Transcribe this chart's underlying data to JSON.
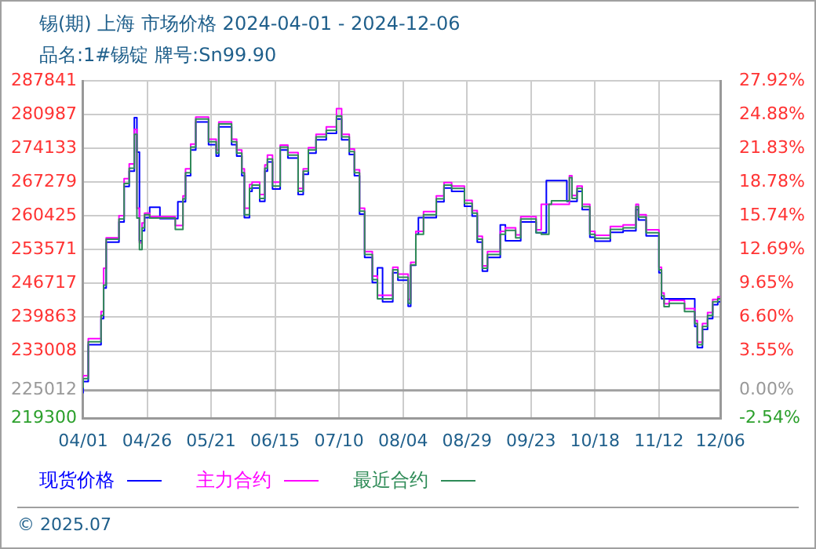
{
  "chart_data": {
    "type": "step",
    "title": "锡(期) 上海 市场价格 2024-04-01 - 2024-12-06",
    "subtitle": "品名:1#锡锭 牌号:Sn99.90",
    "annotations": [
      "© 2025.07"
    ],
    "xlim": [
      "2024-04-01",
      "2024-12-06"
    ],
    "xticks": [
      {
        "value": "2024-04-01",
        "label": "04/01"
      },
      {
        "value": "2024-04-26",
        "label": "04/26"
      },
      {
        "value": "2024-05-21",
        "label": "05/21"
      },
      {
        "value": "2024-06-15",
        "label": "06/15"
      },
      {
        "value": "2024-07-10",
        "label": "07/10"
      },
      {
        "value": "2024-08-04",
        "label": "08/04"
      },
      {
        "value": "2024-08-29",
        "label": "08/29"
      },
      {
        "value": "2024-09-23",
        "label": "09/23"
      },
      {
        "value": "2024-10-18",
        "label": "10/18"
      },
      {
        "value": "2024-11-12",
        "label": "11/12"
      },
      {
        "value": "2024-12-06",
        "label": "12/06"
      }
    ],
    "ylim": [
      219300,
      287841
    ],
    "yticks": [
      219300,
      225012,
      233008,
      239863,
      246717,
      253571,
      260425,
      267279,
      274133,
      280987,
      287841
    ],
    "y2lim": [
      -2.54,
      27.92
    ],
    "y2ticks": [
      {
        "value": -2.54,
        "label": "-2.54%"
      },
      {
        "value": 0,
        "label": "0.00%"
      },
      {
        "value": 3.55,
        "label": "3.55%"
      },
      {
        "value": 6.6,
        "label": "6.60%"
      },
      {
        "value": 9.65,
        "label": "9.65%"
      },
      {
        "value": 12.69,
        "label": "12.69%"
      },
      {
        "value": 15.74,
        "label": "15.74%"
      },
      {
        "value": 18.78,
        "label": "18.78%"
      },
      {
        "value": 21.83,
        "label": "21.83%"
      },
      {
        "value": 24.88,
        "label": "24.88%"
      },
      {
        "value": 27.92,
        "label": "27.92%"
      }
    ],
    "ref_lines": [
      {
        "axis": "y",
        "value": 225012,
        "color": "#a0a0a0",
        "line_style": "solid"
      }
    ],
    "grid": true,
    "legend": "bottom",
    "marker": "none",
    "line_style": "solid",
    "series": [
      {
        "name": "现货价格",
        "color": "#0000ff",
        "x": [
          "2024-04-01",
          "2024-04-03",
          "2024-04-08",
          "2024-04-09",
          "2024-04-10",
          "2024-04-15",
          "2024-04-17",
          "2024-04-19",
          "2024-04-21",
          "2024-04-22",
          "2024-04-23",
          "2024-04-24",
          "2024-04-25",
          "2024-04-27",
          "2024-05-01",
          "2024-05-08",
          "2024-05-11",
          "2024-05-13",
          "2024-05-15",
          "2024-05-20",
          "2024-05-23",
          "2024-05-24",
          "2024-05-29",
          "2024-05-31",
          "2024-06-02",
          "2024-06-03",
          "2024-06-05",
          "2024-06-06",
          "2024-06-09",
          "2024-06-11",
          "2024-06-12",
          "2024-06-14",
          "2024-06-17",
          "2024-06-20",
          "2024-06-24",
          "2024-06-26",
          "2024-06-28",
          "2024-07-01",
          "2024-07-05",
          "2024-07-09",
          "2024-07-11",
          "2024-07-14",
          "2024-07-16",
          "2024-07-18",
          "2024-07-20",
          "2024-07-23",
          "2024-07-25",
          "2024-07-27",
          "2024-07-31",
          "2024-08-02",
          "2024-08-06",
          "2024-08-07",
          "2024-08-09",
          "2024-08-10",
          "2024-08-17",
          "2024-08-20",
          "2024-08-23",
          "2024-08-28",
          "2024-08-31",
          "2024-09-02",
          "2024-09-04",
          "2024-09-06",
          "2024-09-11",
          "2024-09-13",
          "2024-09-19",
          "2024-09-21",
          "2024-09-25",
          "2024-09-29",
          "2024-10-07",
          "2024-10-11",
          "2024-10-13",
          "2024-10-16",
          "2024-10-18",
          "2024-10-24",
          "2024-10-29",
          "2024-11-03",
          "2024-11-04",
          "2024-11-07",
          "2024-11-12",
          "2024-11-13",
          "2024-11-14",
          "2024-11-26",
          "2024-11-27",
          "2024-11-29",
          "2024-12-01",
          "2024-12-03",
          "2024-12-05",
          "2024-12-06"
        ],
        "values": [
          224400,
          226800,
          234300,
          239600,
          245800,
          255100,
          259200,
          266400,
          269500,
          280400,
          273400,
          255400,
          257400,
          260100,
          262200,
          259900,
          263300,
          268600,
          273800,
          279500,
          274900,
          272600,
          278500,
          274900,
          272600,
          268600,
          260100,
          265400,
          266100,
          263400,
          269500,
          271400,
          265900,
          273800,
          272200,
          264800,
          268900,
          273200,
          275900,
          277200,
          280100,
          275900,
          272900,
          268600,
          260800,
          252000,
          246900,
          249900,
          243000,
          248900,
          247400,
          242100,
          250400,
          256700,
          260100,
          263300,
          266100,
          265400,
          262400,
          260400,
          255100,
          249200,
          252000,
          258600,
          255400,
          259200,
          259200,
          257000,
          267600,
          263400,
          265400,
          261700,
          256100,
          255300,
          257100,
          257400,
          261700,
          259600,
          256400,
          248900,
          243600,
          243600,
          238000,
          233700,
          237400,
          239600,
          242400,
          243000
        ]
      },
      {
        "name": "主力合约",
        "color": "#ff00ff",
        "x": [
          "2024-04-01",
          "2024-04-03",
          "2024-04-08",
          "2024-04-09",
          "2024-04-10",
          "2024-04-15",
          "2024-04-17",
          "2024-04-19",
          "2024-04-21",
          "2024-04-22",
          "2024-04-23",
          "2024-04-24",
          "2024-04-25",
          "2024-04-27",
          "2024-05-07",
          "2024-05-10",
          "2024-05-11",
          "2024-05-13",
          "2024-05-15",
          "2024-05-20",
          "2024-05-23",
          "2024-05-24",
          "2024-05-29",
          "2024-05-31",
          "2024-06-02",
          "2024-06-03",
          "2024-06-05",
          "2024-06-06",
          "2024-06-09",
          "2024-06-11",
          "2024-06-12",
          "2024-06-14",
          "2024-06-17",
          "2024-06-20",
          "2024-06-24",
          "2024-06-26",
          "2024-06-28",
          "2024-07-01",
          "2024-07-05",
          "2024-07-09",
          "2024-07-11",
          "2024-07-14",
          "2024-07-16",
          "2024-07-18",
          "2024-07-20",
          "2024-07-23",
          "2024-07-25",
          "2024-07-31",
          "2024-08-02",
          "2024-08-06",
          "2024-08-07",
          "2024-08-09",
          "2024-08-12",
          "2024-08-17",
          "2024-08-20",
          "2024-08-23",
          "2024-08-28",
          "2024-08-31",
          "2024-09-02",
          "2024-09-04",
          "2024-09-06",
          "2024-09-11",
          "2024-09-13",
          "2024-09-17",
          "2024-09-19",
          "2024-09-21",
          "2024-09-25",
          "2024-09-27",
          "2024-09-30",
          "2024-10-08",
          "2024-10-09",
          "2024-10-11",
          "2024-10-13",
          "2024-10-16",
          "2024-10-18",
          "2024-10-24",
          "2024-10-29",
          "2024-11-03",
          "2024-11-04",
          "2024-11-07",
          "2024-11-12",
          "2024-11-13",
          "2024-11-14",
          "2024-11-16",
          "2024-11-22",
          "2024-11-26",
          "2024-11-27",
          "2024-11-29",
          "2024-12-01",
          "2024-12-03",
          "2024-12-05",
          "2024-12-06"
        ],
        "values": [
          226900,
          228000,
          235500,
          241000,
          249800,
          256000,
          260500,
          268000,
          271000,
          278000,
          262000,
          255000,
          259000,
          261000,
          260300,
          258500,
          264500,
          270000,
          275000,
          280500,
          276000,
          273800,
          279500,
          276000,
          273800,
          270000,
          262000,
          266800,
          267300,
          264800,
          270800,
          272800,
          267300,
          274800,
          273300,
          266000,
          270000,
          274300,
          277000,
          278500,
          282200,
          277000,
          274000,
          269800,
          262000,
          253200,
          248200,
          244300,
          250000,
          248600,
          243500,
          251000,
          257300,
          261300,
          264500,
          267200,
          266500,
          263600,
          261500,
          256300,
          250300,
          253200,
          257300,
          258000,
          256600,
          260300,
          260300,
          257600,
          262800,
          262800,
          268600,
          264600,
          266500,
          262800,
          257300,
          256500,
          258300,
          258600,
          262800,
          260700,
          257600,
          250000,
          244800,
          242600,
          243300,
          241600,
          239200,
          234800,
          238600,
          240800,
          243500,
          244000
        ]
      },
      {
        "name": "最近合约",
        "color": "#2e8b57",
        "x": [
          "2024-04-01",
          "2024-04-03",
          "2024-04-08",
          "2024-04-09",
          "2024-04-10",
          "2024-04-15",
          "2024-04-17",
          "2024-04-19",
          "2024-04-21",
          "2024-04-22",
          "2024-04-23",
          "2024-04-24",
          "2024-04-25",
          "2024-04-27",
          "2024-05-07",
          "2024-05-10",
          "2024-05-11",
          "2024-05-13",
          "2024-05-15",
          "2024-05-20",
          "2024-05-23",
          "2024-05-24",
          "2024-05-29",
          "2024-05-31",
          "2024-06-02",
          "2024-06-03",
          "2024-06-05",
          "2024-06-06",
          "2024-06-09",
          "2024-06-11",
          "2024-06-12",
          "2024-06-14",
          "2024-06-17",
          "2024-06-20",
          "2024-06-24",
          "2024-06-26",
          "2024-06-28",
          "2024-07-01",
          "2024-07-05",
          "2024-07-09",
          "2024-07-11",
          "2024-07-14",
          "2024-07-16",
          "2024-07-18",
          "2024-07-20",
          "2024-07-23",
          "2024-07-25",
          "2024-07-31",
          "2024-08-02",
          "2024-08-06",
          "2024-08-07",
          "2024-08-09",
          "2024-08-12",
          "2024-08-17",
          "2024-08-20",
          "2024-08-23",
          "2024-08-28",
          "2024-08-31",
          "2024-09-02",
          "2024-09-04",
          "2024-09-06",
          "2024-09-11",
          "2024-09-13",
          "2024-09-17",
          "2024-09-19",
          "2024-09-21",
          "2024-09-25",
          "2024-09-27",
          "2024-09-30",
          "2024-10-01",
          "2024-10-08",
          "2024-10-09",
          "2024-10-11",
          "2024-10-13",
          "2024-10-16",
          "2024-10-18",
          "2024-10-24",
          "2024-10-29",
          "2024-11-03",
          "2024-11-04",
          "2024-11-07",
          "2024-11-12",
          "2024-11-13",
          "2024-11-14",
          "2024-11-16",
          "2024-11-22",
          "2024-11-26",
          "2024-11-27",
          "2024-11-29",
          "2024-12-01",
          "2024-12-03",
          "2024-12-05",
          "2024-12-06"
        ],
        "values": [
          225500,
          227400,
          234900,
          240200,
          246400,
          255700,
          259800,
          267000,
          270100,
          277000,
          260000,
          253600,
          258000,
          260700,
          260000,
          257700,
          263900,
          269200,
          274400,
          280100,
          275500,
          273200,
          279100,
          275500,
          273200,
          269200,
          260700,
          266000,
          266700,
          264000,
          270100,
          272000,
          266500,
          274400,
          272800,
          265400,
          269500,
          273800,
          276500,
          277800,
          280700,
          276500,
          273500,
          269200,
          261400,
          252600,
          247500,
          243600,
          249500,
          248000,
          242700,
          250500,
          256700,
          260700,
          263900,
          266700,
          266000,
          263000,
          261000,
          255700,
          249800,
          252600,
          256700,
          257500,
          256000,
          259800,
          259800,
          257000,
          256700,
          262800,
          263500,
          268200,
          264000,
          266000,
          262300,
          256700,
          255900,
          257700,
          258000,
          262300,
          260200,
          257000,
          249500,
          244200,
          242000,
          242700,
          241000,
          238600,
          234300,
          238000,
          240200,
          243000,
          243600
        ]
      }
    ]
  }
}
